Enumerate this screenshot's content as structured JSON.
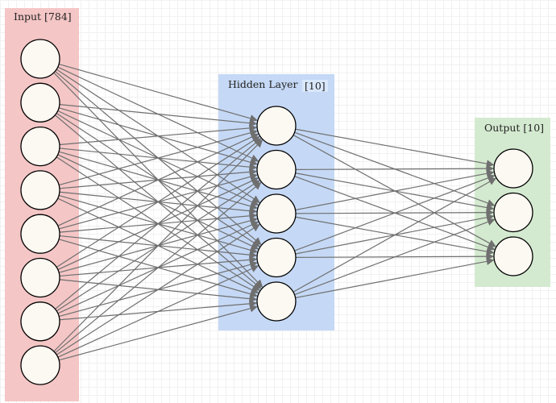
{
  "layers": {
    "input": {
      "label": "Input [784]",
      "fill": "#f5c6c6",
      "nodes": 8
    },
    "hidden": {
      "label": "Hidden Layer",
      "size_label": "[10]",
      "fill": "#c5d9f6",
      "nodes": 5
    },
    "output": {
      "label": "Output [10]",
      "fill": "#d4ead0",
      "nodes": 3
    }
  },
  "colors": {
    "edge": "#6f6f6f",
    "node_fill": "#fcf8f2",
    "node_stroke": "#000000"
  }
}
